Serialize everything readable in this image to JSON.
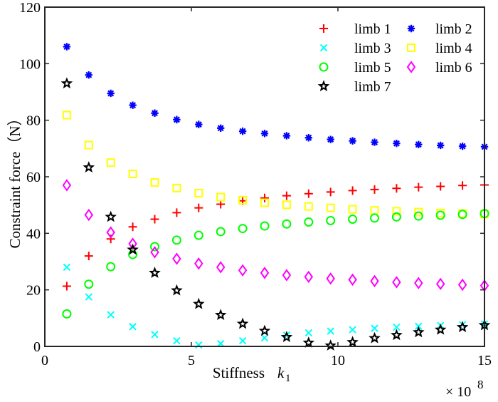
{
  "chart_data": {
    "type": "scatter",
    "title": "",
    "xlabel": "Stiffness",
    "xlabel_symbol": "k",
    "xlabel_subscript": "1",
    "ylabel": "Constraint force（N）",
    "x_multiplier": "× 10",
    "x_multiplier_exp": "8",
    "xlim": [
      0,
      15
    ],
    "ylim": [
      0,
      120
    ],
    "xticks": [
      0,
      5,
      10,
      15
    ],
    "yticks": [
      0,
      20,
      40,
      60,
      80,
      100,
      120
    ],
    "xtick_labels": [
      "0",
      "5",
      "10",
      "15"
    ],
    "ytick_labels": [
      "0",
      "20",
      "40",
      "60",
      "80",
      "100",
      "120"
    ],
    "grid": false,
    "legend_position": "top-right",
    "x": [
      0.75,
      1.5,
      2.25,
      3.0,
      3.75,
      4.5,
      5.25,
      6.0,
      6.75,
      7.5,
      8.25,
      9.0,
      9.75,
      10.5,
      11.25,
      12.0,
      12.75,
      13.5,
      14.25,
      15.0
    ],
    "series": [
      {
        "name": "limb 1",
        "marker": "plus",
        "color": "#ff0000",
        "values": [
          21.3,
          32,
          38,
          42.3,
          45,
          47.3,
          49,
          50.3,
          51.5,
          52.5,
          53.3,
          54,
          54.6,
          55.1,
          55.5,
          55.9,
          56.3,
          56.6,
          56.9,
          57.1
        ]
      },
      {
        "name": "limb 2",
        "marker": "asterisk",
        "color": "#0000ff",
        "values": [
          106,
          96,
          89.5,
          85.3,
          82.5,
          80.2,
          78.5,
          77.2,
          76.1,
          75.3,
          74.5,
          73.8,
          73.2,
          72.7,
          72.2,
          71.8,
          71.4,
          71.1,
          70.8,
          70.6
        ]
      },
      {
        "name": "limb 3",
        "marker": "cross",
        "color": "#00ffff",
        "values": [
          28,
          17.5,
          11.2,
          7,
          4.2,
          2,
          0.5,
          1,
          2,
          3,
          4,
          4.8,
          5.4,
          5.9,
          6.4,
          6.8,
          7.1,
          7.4,
          7.7,
          7.9
        ]
      },
      {
        "name": "limb 4",
        "marker": "square",
        "color": "#ffff00",
        "values": [
          81.8,
          71.2,
          65,
          61,
          58,
          56,
          54.2,
          52.8,
          51.7,
          50.8,
          50.1,
          49.5,
          49,
          48.5,
          48.1,
          47.8,
          47.5,
          47.2,
          47,
          46.8
        ]
      },
      {
        "name": "limb 5",
        "marker": "circle",
        "color": "#00ff00",
        "values": [
          11.5,
          22,
          28.2,
          32.5,
          35.3,
          37.6,
          39.3,
          40.6,
          41.7,
          42.6,
          43.3,
          44,
          44.5,
          45,
          45.4,
          45.8,
          46.1,
          46.4,
          46.7,
          47
        ]
      },
      {
        "name": "limb 6",
        "marker": "diamond",
        "color": "#ff00ff",
        "values": [
          57,
          46.5,
          40.3,
          36.3,
          33.3,
          31,
          29.3,
          28,
          26.9,
          26,
          25.2,
          24.6,
          24,
          23.6,
          23.1,
          22.7,
          22.4,
          22.1,
          21.8,
          21.5
        ]
      },
      {
        "name": "limb 7",
        "marker": "pentagram",
        "color": "#000000",
        "values": [
          93,
          63.3,
          45.8,
          34.2,
          26,
          19.8,
          15,
          11.1,
          8,
          5.5,
          3.3,
          1.3,
          0.3,
          1.5,
          2.9,
          4,
          5,
          5.9,
          6.8,
          7.5
        ]
      }
    ],
    "legend_order": [
      [
        "limb 1",
        "limb 2"
      ],
      [
        "limb 3",
        "limb 4"
      ],
      [
        "limb 5",
        "limb 6"
      ],
      [
        "limb 7"
      ]
    ]
  }
}
